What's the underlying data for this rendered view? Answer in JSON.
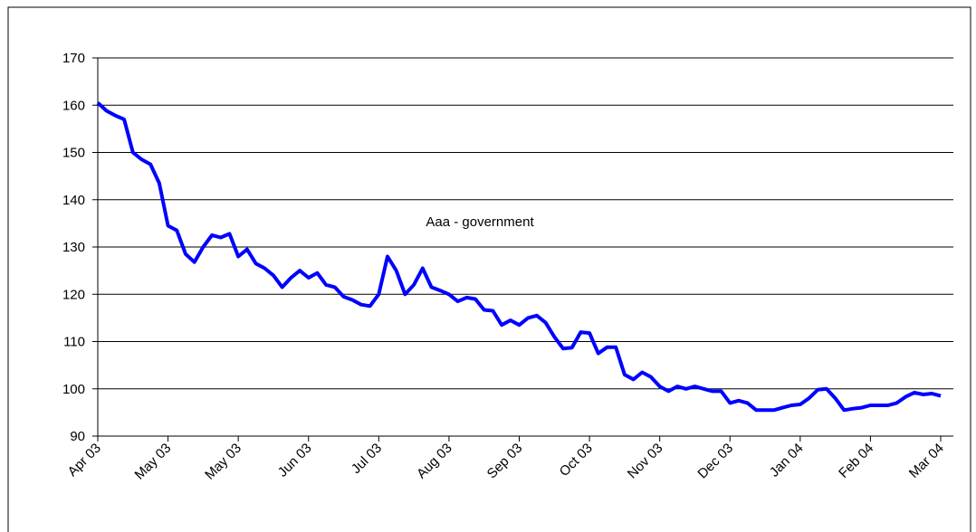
{
  "chart_data": {
    "type": "line",
    "annotation": "Aaa - government",
    "categories": [
      "Apr 03",
      null,
      null,
      null,
      null,
      null,
      null,
      null,
      "May 03",
      null,
      null,
      null,
      null,
      null,
      null,
      null,
      "May 03",
      null,
      null,
      null,
      null,
      null,
      null,
      null,
      "Jun 03",
      null,
      null,
      null,
      null,
      null,
      null,
      null,
      "Jul 03",
      null,
      null,
      null,
      null,
      null,
      null,
      null,
      "Aug 03",
      null,
      null,
      null,
      null,
      null,
      null,
      null,
      "Sep 03",
      null,
      null,
      null,
      null,
      null,
      null,
      null,
      "Oct 03",
      null,
      null,
      null,
      null,
      null,
      null,
      null,
      "Nov 03",
      null,
      null,
      null,
      null,
      null,
      null,
      null,
      "Dec 03",
      null,
      null,
      null,
      null,
      null,
      null,
      null,
      "Jan 04",
      null,
      null,
      null,
      null,
      null,
      null,
      null,
      "Feb 04",
      null,
      null,
      null,
      null,
      null,
      null,
      null,
      "Mar 04"
    ],
    "values": [
      160.5,
      158.8,
      157.8,
      157,
      150,
      148.5,
      147.5,
      143.5,
      134.5,
      133.5,
      128.5,
      126.8,
      130,
      132.5,
      132,
      132.8,
      128,
      129.5,
      126.5,
      125.5,
      124,
      121.5,
      123.5,
      125,
      123.5,
      124.5,
      122,
      121.5,
      119.5,
      118.8,
      117.8,
      117.5,
      120,
      128,
      125,
      120,
      122,
      125.5,
      121.5,
      120.8,
      120,
      118.5,
      119.3,
      119,
      116.7,
      116.5,
      113.5,
      114.5,
      113.5,
      115,
      115.5,
      114,
      111,
      108.5,
      108.7,
      112,
      111.8,
      107.5,
      108.8,
      108.8,
      103,
      102,
      103.5,
      102.5,
      100.5,
      99.5,
      100.5,
      100,
      100.5,
      100,
      99.5,
      99.5,
      97,
      97.5,
      97,
      95.5,
      95.5,
      95.5,
      96,
      96.5,
      96.7,
      98,
      99.8,
      100,
      98,
      95.5,
      95.8,
      96,
      96.5,
      96.5,
      96.5,
      97,
      98.3,
      99.2,
      98.8,
      99,
      98.5
    ],
    "color": "#0000ff",
    "ylim": [
      90,
      170
    ],
    "yticks": [
      90,
      100,
      110,
      120,
      130,
      140,
      150,
      160,
      170
    ],
    "grid": true
  }
}
